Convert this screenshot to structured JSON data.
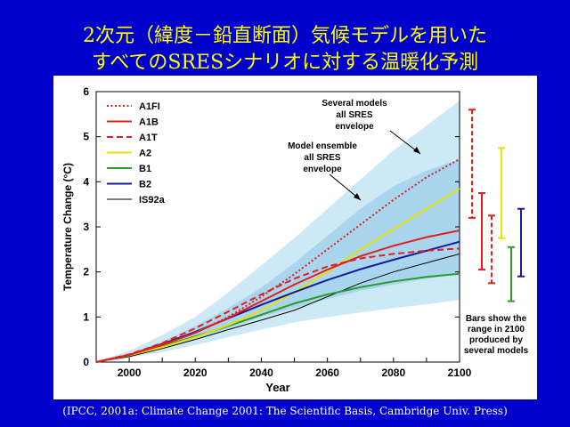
{
  "slide": {
    "title_line1": "2次元（緯度－鉛直断面）気候モデルを用いた",
    "title_line2": "すべてのSRESシナリオに対する温暖化予測",
    "caption": "(IPCC, 2001a: Climate Change 2001: The Scientific Basis, Cambridge Univ. Press)"
  },
  "chart_data": {
    "type": "line",
    "xlabel": "Year",
    "ylabel": "Temperature Change (°C)",
    "xlim": [
      1990,
      2100
    ],
    "ylim": [
      0,
      6
    ],
    "xticks": [
      2000,
      2020,
      2040,
      2060,
      2080,
      2100
    ],
    "yticks": [
      0,
      1,
      2,
      3,
      4,
      5,
      6
    ],
    "x": [
      1990,
      2000,
      2010,
      2020,
      2030,
      2040,
      2050,
      2060,
      2070,
      2080,
      2090,
      2100
    ],
    "series": [
      {
        "name": "A1FI",
        "color": "#e0201c",
        "dash": "dotted",
        "values": [
          0,
          0.16,
          0.38,
          0.65,
          1.0,
          1.45,
          1.95,
          2.5,
          3.05,
          3.6,
          4.1,
          4.5
        ]
      },
      {
        "name": "A1B",
        "color": "#e0201c",
        "dash": "solid",
        "values": [
          0,
          0.16,
          0.38,
          0.65,
          0.98,
          1.35,
          1.72,
          2.05,
          2.35,
          2.58,
          2.77,
          2.92
        ]
      },
      {
        "name": "A1T",
        "color": "#e0201c",
        "dash": "dashed",
        "values": [
          0,
          0.17,
          0.42,
          0.75,
          1.12,
          1.5,
          1.85,
          2.12,
          2.3,
          2.4,
          2.47,
          2.52
        ]
      },
      {
        "name": "A2",
        "color": "#e8e000",
        "dash": "solid",
        "values": [
          0,
          0.15,
          0.33,
          0.55,
          0.82,
          1.15,
          1.55,
          2.0,
          2.5,
          2.95,
          3.4,
          3.85
        ]
      },
      {
        "name": "B1",
        "color": "#2a9c2a",
        "dash": "solid",
        "values": [
          0,
          0.15,
          0.35,
          0.57,
          0.8,
          1.05,
          1.3,
          1.5,
          1.66,
          1.79,
          1.89,
          1.96
        ]
      },
      {
        "name": "B2",
        "color": "#1a1a9c",
        "dash": "solid",
        "values": [
          0,
          0.16,
          0.4,
          0.67,
          0.97,
          1.27,
          1.55,
          1.82,
          2.06,
          2.27,
          2.47,
          2.67
        ]
      },
      {
        "name": "IS92a",
        "color": "#000000",
        "dash": "solid",
        "values": [
          0,
          0.12,
          0.3,
          0.5,
          0.72,
          0.93,
          1.15,
          1.45,
          1.75,
          2.0,
          2.2,
          2.4
        ]
      }
    ],
    "envelopes": [
      {
        "name": "Several models all SRES envelope",
        "color": "#cde9f5",
        "upper": [
          0,
          0.25,
          0.6,
          1.0,
          1.55,
          2.15,
          2.75,
          3.4,
          4.05,
          4.7,
          5.25,
          5.8
        ],
        "lower": [
          0,
          0.1,
          0.22,
          0.38,
          0.55,
          0.72,
          0.88,
          1.0,
          1.1,
          1.2,
          1.28,
          1.38
        ]
      },
      {
        "name": "Model ensemble all SRES envelope",
        "color": "#a9d6ee",
        "upper": [
          0,
          0.18,
          0.45,
          0.8,
          1.2,
          1.65,
          2.2,
          2.8,
          3.4,
          3.9,
          4.25,
          4.5
        ],
        "lower": [
          0,
          0.13,
          0.3,
          0.5,
          0.75,
          1.0,
          1.2,
          1.4,
          1.58,
          1.72,
          1.85,
          1.95
        ]
      }
    ],
    "annotations": [
      {
        "id": "several",
        "lines": [
          "Several models",
          "all SRES",
          "envelope"
        ]
      },
      {
        "id": "ensemble",
        "lines": [
          "Model ensemble",
          "all SRES",
          "envelope"
        ]
      }
    ],
    "range_bars": [
      {
        "name": "A1FI",
        "color": "#e0201c",
        "dash": "dashed",
        "min": 3.2,
        "max": 5.6
      },
      {
        "name": "A1B",
        "color": "#e0201c",
        "dash": "solid",
        "min": 2.05,
        "max": 3.75
      },
      {
        "name": "A1T",
        "color": "#e0201c",
        "dash": "dashed",
        "min": 1.75,
        "max": 3.25
      },
      {
        "name": "A2",
        "color": "#e8e000",
        "dash": "solid",
        "min": 2.75,
        "max": 4.75
      },
      {
        "name": "B1",
        "color": "#2a9c2a",
        "dash": "solid",
        "min": 1.35,
        "max": 2.55
      },
      {
        "name": "B2",
        "color": "#1a1a9c",
        "dash": "solid",
        "min": 1.9,
        "max": 3.4
      }
    ],
    "bars_note": [
      "Bars show the",
      "range in 2100",
      "produced by",
      "several models"
    ]
  }
}
